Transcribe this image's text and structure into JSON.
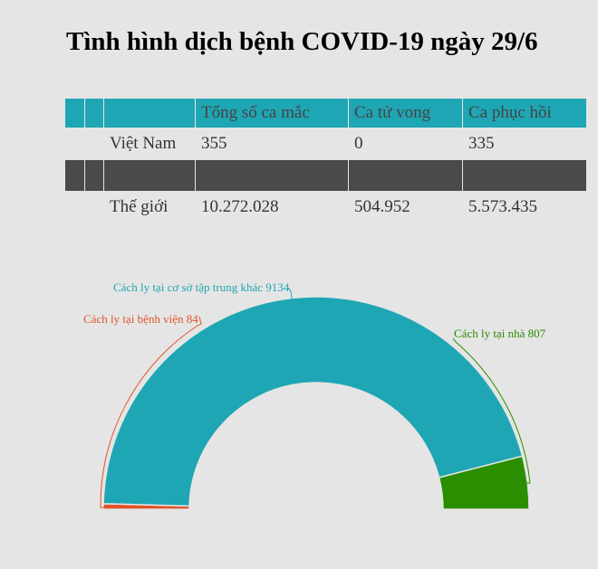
{
  "title": "Tình hình dịch bệnh COVID-19 ngày 29/6",
  "table": {
    "headers": [
      "",
      "",
      "",
      "Tổng số ca mắc",
      "Ca tử vong",
      "Ca phục hồi"
    ],
    "rows": [
      {
        "region": "Việt Nam",
        "cases": "355",
        "deaths": "0",
        "recovered": "335"
      },
      {
        "region": "Thế giới",
        "cases": "10.272.028",
        "deaths": "504.952",
        "recovered": "5.573.435"
      }
    ],
    "header_color": "#1fa6b4",
    "separator_color": "#4a4a4a"
  },
  "chart_data": {
    "type": "pie",
    "variant": "semi-donut",
    "title": "",
    "categories": [
      "Cách ly tại bệnh viện",
      "Cách ly tại cơ sở tập trung khác",
      "Cách ly tại nhà"
    ],
    "values": [
      84,
      9134,
      807
    ],
    "colors": [
      "#e0532a",
      "#1fa6b4",
      "#2a8e00"
    ],
    "labels": [
      "Cách ly tại bệnh viện 84",
      "Cách ly tại cơ sở tập trung khác 9134",
      "Cách ly tại nhà 807"
    ],
    "start_angle": -90,
    "end_angle": 90,
    "legend": "none"
  }
}
